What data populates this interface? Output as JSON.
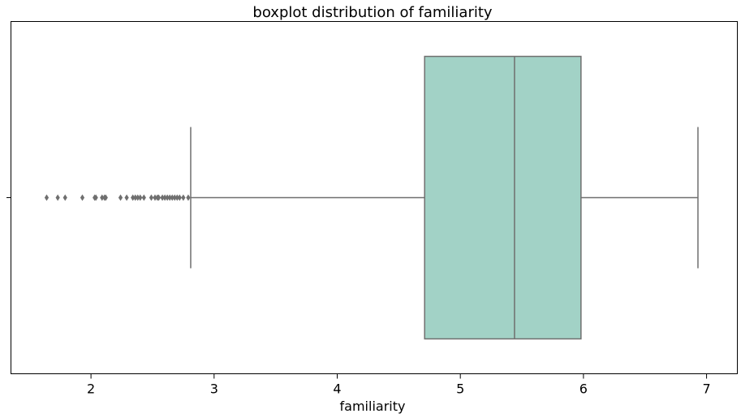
{
  "chart_data": {
    "type": "boxplot",
    "title": "boxplot distribution of familiarity",
    "xlabel": "familiarity",
    "ylabel": "",
    "orientation": "horizontal",
    "xlim": [
      1.35,
      7.25
    ],
    "x_ticks": [
      2,
      3,
      4,
      5,
      6,
      7
    ],
    "x_tick_labels": [
      "2",
      "3",
      "4",
      "5",
      "6",
      "7"
    ],
    "grid": false,
    "box": {
      "whisker_low": 2.81,
      "q1": 4.71,
      "median": 5.44,
      "q3": 5.98,
      "whisker_high": 6.93
    },
    "outliers": [
      1.64,
      1.73,
      1.79,
      1.93,
      2.03,
      2.04,
      2.09,
      2.11,
      2.12,
      2.24,
      2.29,
      2.34,
      2.36,
      2.38,
      2.4,
      2.43,
      2.49,
      2.52,
      2.54,
      2.55,
      2.58,
      2.6,
      2.62,
      2.64,
      2.66,
      2.68,
      2.7,
      2.72,
      2.75,
      2.79
    ],
    "colors": {
      "box_fill": "#a2d2c6",
      "line": "#6f6f6f",
      "outlier": "#6f6f6f",
      "frame": "#000000"
    }
  }
}
